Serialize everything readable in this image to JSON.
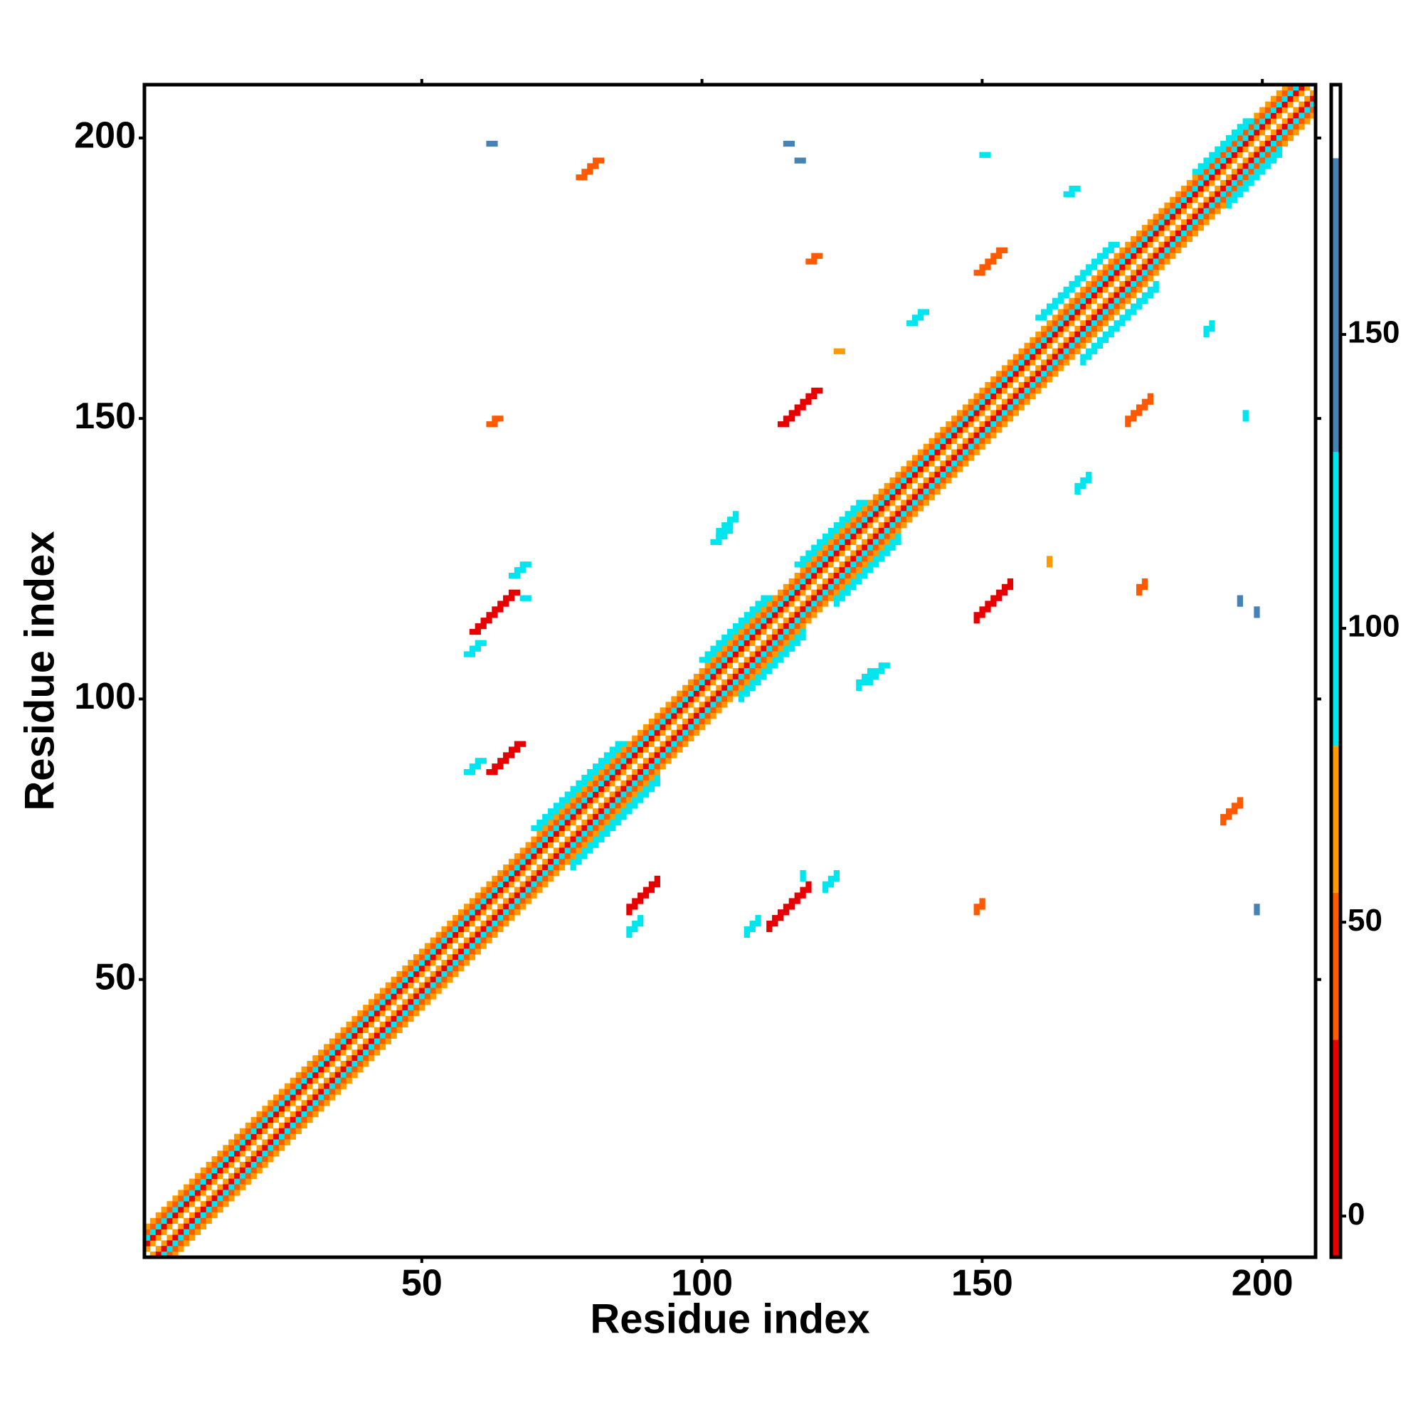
{
  "chart_data": {
    "type": "heatmap",
    "x_label": "Residue index",
    "y_label": "Residue index",
    "xlim": [
      0.5,
      209.5
    ],
    "ylim": [
      0.5,
      209.5
    ],
    "xticks": [
      50,
      100,
      150,
      200
    ],
    "yticks": [
      50,
      100,
      150,
      200
    ],
    "residues": 209,
    "symmetric": true,
    "diagonal": {
      "offsets": [
        0,
        1,
        2,
        3,
        4,
        5
      ],
      "values": [
        185,
        65,
        20,
        100,
        40,
        60
      ]
    },
    "patches": [
      {
        "x": 59,
        "y": 112,
        "length": 8,
        "value": 10
      },
      {
        "x": 58,
        "y": 108,
        "length": 3,
        "value": 100
      },
      {
        "x": 62,
        "y": 87,
        "length": 6,
        "value": 10
      },
      {
        "x": 58,
        "y": 87,
        "length": 3,
        "value": 100
      },
      {
        "x": 114,
        "y": 149,
        "length": 7,
        "value": 10
      },
      {
        "x": 149,
        "y": 176,
        "length": 5,
        "value": 45
      },
      {
        "x": 62,
        "y": 149,
        "length": 2,
        "value": 50
      },
      {
        "x": 78,
        "y": 193,
        "length": 4,
        "value": 45
      },
      {
        "x": 119,
        "y": 178,
        "length": 2,
        "value": 50
      },
      {
        "x": 129,
        "y": 103,
        "length": 4,
        "value": 95
      },
      {
        "x": 102,
        "y": 128,
        "length": 3,
        "value": 100
      },
      {
        "x": 165,
        "y": 190,
        "length": 2,
        "value": 100
      },
      {
        "x": 137,
        "y": 167,
        "length": 3,
        "value": 100
      },
      {
        "x": 62,
        "y": 199,
        "length": 1,
        "value": 140
      },
      {
        "x": 115,
        "y": 199,
        "length": 1,
        "value": 140
      },
      {
        "x": 117,
        "y": 196,
        "length": 1,
        "value": 140
      },
      {
        "x": 150,
        "y": 197,
        "length": 1,
        "value": 110
      },
      {
        "x": 66,
        "y": 122,
        "length": 3,
        "value": 100
      },
      {
        "x": 68,
        "y": 118,
        "length": 1,
        "value": 130
      },
      {
        "x": 124,
        "y": 162,
        "length": 1,
        "value": 60
      },
      {
        "x": 70,
        "y": 77,
        "length": 16,
        "value": 100
      },
      {
        "x": 100,
        "y": 107,
        "length": 12,
        "value": 100
      },
      {
        "x": 117,
        "y": 124,
        "length": 12,
        "value": 100
      },
      {
        "x": 160,
        "y": 168,
        "length": 14,
        "value": 100
      },
      {
        "x": 188,
        "y": 194,
        "length": 10,
        "value": 100
      }
    ],
    "colorbar": {
      "bins": [
        -7,
        30,
        55,
        80,
        130,
        180,
        192.5
      ],
      "colors": [
        "#e60000",
        "#ff5a00",
        "#ff9a00",
        "#00e5ee",
        "#4682b4",
        "#ffffff"
      ],
      "ticks": [
        0,
        50,
        100,
        150
      ]
    }
  }
}
